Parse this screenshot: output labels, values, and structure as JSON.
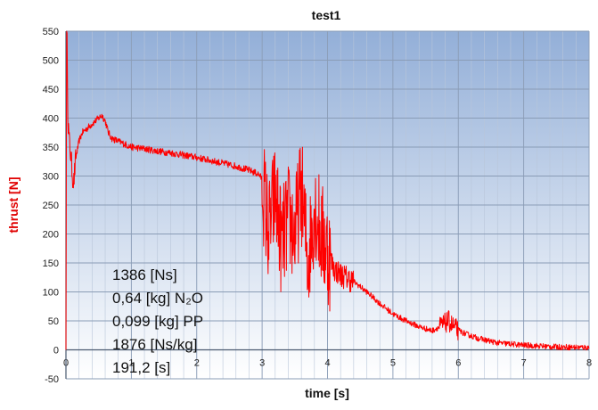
{
  "chart_data": {
    "type": "line",
    "title": "test1",
    "xlabel": "time [s]",
    "ylabel": "thrust [N]",
    "xlim": [
      0,
      8
    ],
    "ylim": [
      -50,
      550
    ],
    "x_ticks": [
      "0",
      "1",
      "2",
      "3",
      "4",
      "5",
      "6",
      "7",
      "8"
    ],
    "y_ticks": [
      "-50",
      "0",
      "50",
      "100",
      "150",
      "200",
      "250",
      "300",
      "350",
      "400",
      "450",
      "500",
      "550"
    ],
    "grid": true,
    "background": "blue-white gradient",
    "line_color": "#ff0000",
    "ylabel_color": "#e00000",
    "series": [
      {
        "x": [
          0,
          0.01,
          0.02,
          0.03,
          0.05,
          0.08,
          0.1,
          0.12,
          0.15,
          0.2,
          0.25,
          0.3,
          0.35,
          0.4,
          0.45,
          0.5,
          0.55,
          0.6,
          0.65,
          0.7,
          0.8,
          0.9,
          1.0,
          1.2,
          1.4,
          1.6,
          1.8,
          2.0,
          2.2,
          2.4,
          2.6,
          2.8,
          2.95,
          3.0,
          3.1,
          3.2,
          3.3,
          3.4,
          3.5,
          3.6,
          3.7,
          3.8,
          3.9,
          4.0,
          4.1,
          4.2,
          4.4,
          4.6,
          4.8,
          5.0,
          5.2,
          5.4,
          5.6,
          5.75,
          5.85,
          5.95,
          6.1,
          6.3,
          6.6,
          7.0,
          7.5,
          8.0
        ],
        "y": [
          0,
          550,
          520,
          400,
          360,
          330,
          300,
          290,
          330,
          360,
          375,
          380,
          385,
          390,
          395,
          400,
          405,
          395,
          375,
          365,
          360,
          355,
          350,
          347,
          343,
          340,
          336,
          332,
          327,
          322,
          317,
          310,
          303,
          295,
          200,
          270,
          180,
          230,
          200,
          280,
          150,
          250,
          200,
          170,
          140,
          130,
          118,
          100,
          80,
          62,
          50,
          40,
          33,
          42,
          50,
          37,
          28,
          20,
          12,
          8,
          5,
          4
        ]
      }
    ],
    "annotations": [
      "1386  [Ns]",
      "0,64 [kg] N₂O",
      "0,099 [kg] PP",
      "1876  [Ns/kg]",
      "191,2 [s]"
    ]
  }
}
